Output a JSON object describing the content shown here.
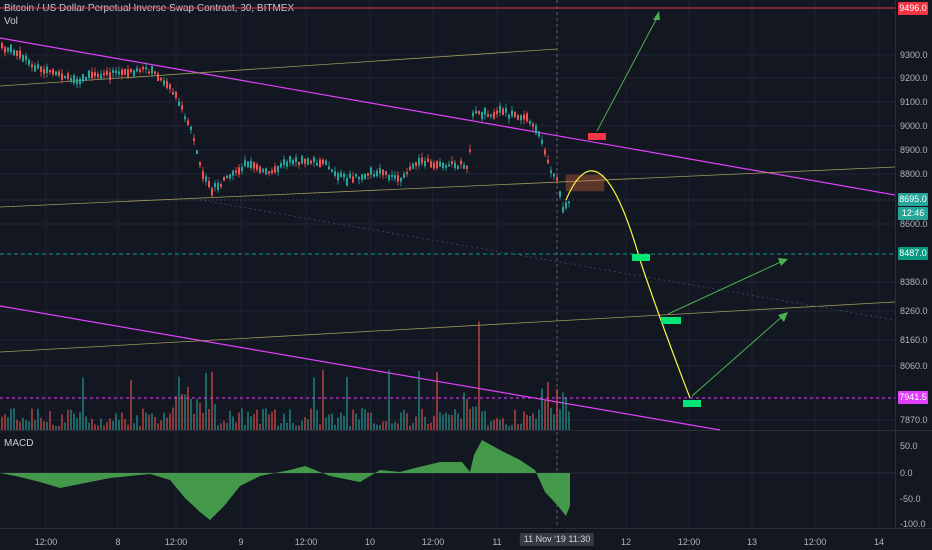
{
  "header": {
    "title": "Bitcoin / US Dollar Perpetual Inverse Swap Contract, 30, BITMEX",
    "vol_label": "Vol",
    "macd_label": "MACD"
  },
  "price_axis": {
    "ticks": [
      "9300.0",
      "9200.0",
      "9100.0",
      "9000.0",
      "8900.0",
      "8800.0",
      "8600.0",
      "8380.0",
      "8260.0",
      "8160.0",
      "8060.0",
      "7870.0"
    ],
    "tags": {
      "top_resistance": {
        "value": "9496.0",
        "color": "#f23645"
      },
      "last_price": {
        "value": "8695.0",
        "color": "#26a69a"
      },
      "countdown": {
        "value": "12:46",
        "color": "#26a69a"
      },
      "support_green": {
        "value": "8487.0",
        "color": "#089981"
      },
      "support_magenta": {
        "value": "7941.5",
        "color": "#e040fb"
      }
    }
  },
  "macd_axis": {
    "ticks": [
      "50.0",
      "0.0",
      "-50.0",
      "-100.0"
    ]
  },
  "time_axis": {
    "ticks": [
      "12:00",
      "8",
      "12:00",
      "9",
      "12:00",
      "10",
      "12:00",
      "11",
      "12",
      "12:00",
      "13",
      "12:00",
      "14"
    ],
    "cursor_label": "11 Nov '19  11:30"
  },
  "colors": {
    "up": "#26a69a",
    "down": "#ef5350",
    "trendline": "#e040fb",
    "guide": "#9e9b58",
    "arrow": "#4caf50",
    "curve": "#f5f541"
  }
}
